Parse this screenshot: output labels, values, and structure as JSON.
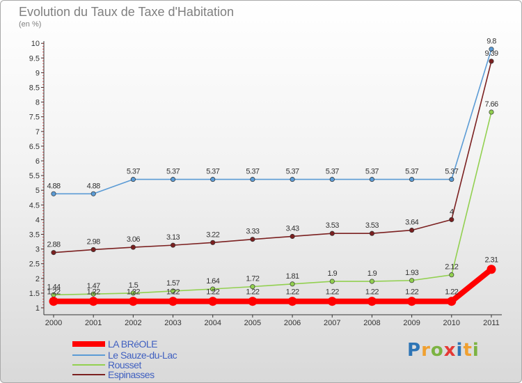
{
  "chart_data": {
    "type": "line",
    "title": "Evolution du Taux de Taxe d'Habitation",
    "ylabel": "(en %)",
    "xlabel": "",
    "x": [
      "2000",
      "2001",
      "2002",
      "2003",
      "2004",
      "2005",
      "2006",
      "2007",
      "2008",
      "2009",
      "2010",
      "2011"
    ],
    "yticks": [
      "1",
      "1.5",
      "2",
      "2.5",
      "3",
      "3.5",
      "4",
      "4.5",
      "5",
      "5.5",
      "6",
      "6.5",
      "7",
      "7.5",
      "8",
      "8.5",
      "9",
      "9.5",
      "10"
    ],
    "ylim": [
      1,
      10
    ],
    "series": [
      {
        "name": "LA BRéOLE",
        "color": "#ff0000",
        "values": [
          1.22,
          1.22,
          1.22,
          1.22,
          1.22,
          1.22,
          1.22,
          1.22,
          1.22,
          1.22,
          1.22,
          2.31
        ],
        "labels": [
          "1.22",
          "1.22",
          "1.22",
          "1.22",
          "1.22",
          "1.22",
          "1.22",
          "1.22",
          "1.22",
          "1.22",
          "1.22",
          "2.31"
        ]
      },
      {
        "name": "Le Sauze-du-Lac",
        "color": "#5b9bd5",
        "values": [
          4.88,
          4.88,
          5.37,
          5.37,
          5.37,
          5.37,
          5.37,
          5.37,
          5.37,
          5.37,
          5.37,
          9.8
        ],
        "labels": [
          "4.88",
          "4.88",
          "5.37",
          "5.37",
          "5.37",
          "5.37",
          "5.37",
          "5.37",
          "5.37",
          "5.37",
          "5.37",
          "9.8"
        ]
      },
      {
        "name": "Rousset",
        "color": "#92d050",
        "values": [
          1.44,
          1.47,
          1.5,
          1.57,
          1.64,
          1.72,
          1.81,
          1.9,
          1.9,
          1.93,
          2.12,
          7.66
        ],
        "labels": [
          "1.44",
          "1.47",
          "1.5",
          "1.57",
          "1.64",
          "1.72",
          "1.81",
          "1.9",
          "1.9",
          "1.93",
          "2.12",
          "7.66"
        ]
      },
      {
        "name": "Espinasses",
        "color": "#7b2020",
        "values": [
          2.88,
          2.98,
          3.06,
          3.13,
          3.22,
          3.33,
          3.43,
          3.53,
          3.53,
          3.64,
          4,
          9.39
        ],
        "labels": [
          "2.88",
          "2.98",
          "3.06",
          "3.13",
          "3.22",
          "3.33",
          "3.43",
          "3.53",
          "3.53",
          "3.64",
          "4",
          "9.39"
        ]
      }
    ],
    "legend_position": "bottom-left",
    "grid": false
  },
  "logo": {
    "text": "Proxiti"
  }
}
